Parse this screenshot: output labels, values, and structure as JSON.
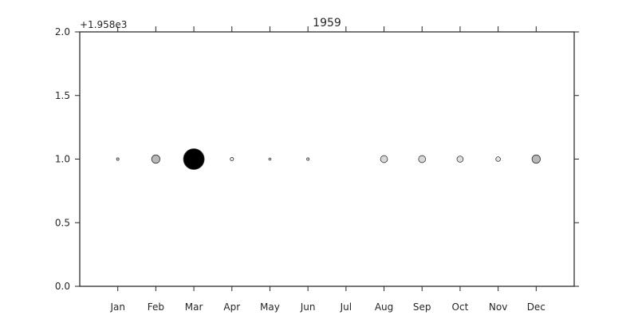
{
  "chart_data": {
    "type": "scatter",
    "title": "1959",
    "y_offset_label": "+1.958e3",
    "categories": [
      "Jan",
      "Feb",
      "Mar",
      "Apr",
      "May",
      "Jun",
      "Jul",
      "Aug",
      "Sep",
      "Oct",
      "Nov",
      "Dec"
    ],
    "y": [
      1.0,
      1.0,
      1.0,
      1.0,
      1.0,
      1.0,
      null,
      1.0,
      1.0,
      1.0,
      1.0,
      1.0
    ],
    "sizes": [
      1.2,
      4.0,
      10.0,
      1.6,
      0.8,
      1.2,
      null,
      3.4,
      3.4,
      3.0,
      2.2,
      4.0
    ],
    "shades": [
      "#e5e5e5",
      "#b8b8b8",
      "#000000",
      "#ededed",
      "#eeeeee",
      "#eeeeee",
      null,
      "#d8d8d8",
      "#d8d8d8",
      "#dedede",
      "#e6e6e6",
      "#b8b8b8"
    ],
    "ylim": [
      0.0,
      2.0
    ],
    "yticks": [
      "0.0",
      "0.5",
      "1.0",
      "1.5",
      "2.0"
    ],
    "xlabel": "",
    "ylabel": "",
    "grid": false,
    "colors": {
      "axis": "#262626",
      "marker_edge": "#333333"
    }
  }
}
